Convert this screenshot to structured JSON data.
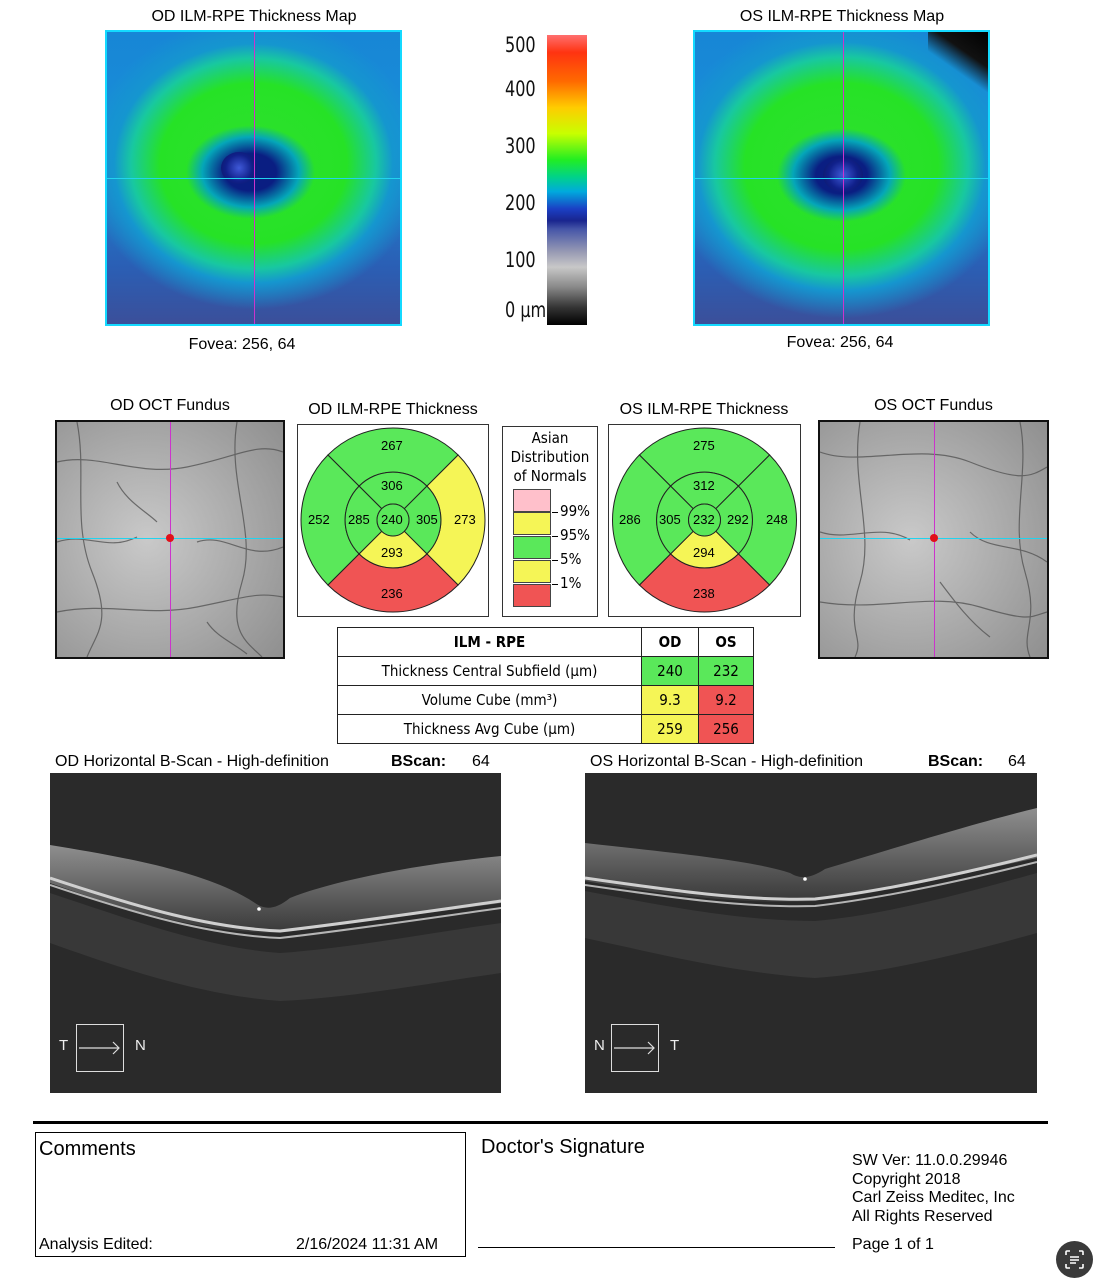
{
  "od_map": {
    "title": "OD ILM-RPE Thickness Map",
    "fovea": "Fovea: 256, 64"
  },
  "os_map": {
    "title": "OS ILM-RPE Thickness Map",
    "fovea": "Fovea: 256, 64"
  },
  "scale": {
    "labels": [
      "500",
      "400",
      "300",
      "200",
      "100",
      "0 µm"
    ]
  },
  "od_fundus": {
    "title": "OD OCT Fundus"
  },
  "os_fundus": {
    "title": "OS OCT Fundus"
  },
  "od_etdrs": {
    "title": "OD ILM-RPE Thickness",
    "superior_outer": "267",
    "superior_inner": "306",
    "temporal_outer": "252",
    "temporal_inner": "285",
    "center": "240",
    "nasal_inner": "305",
    "nasal_outer": "273",
    "inferior_inner": "293",
    "inferior_outer": "236"
  },
  "os_etdrs": {
    "title": "OS ILM-RPE Thickness",
    "superior_outer": "275",
    "superior_inner": "312",
    "nasal_outer": "286",
    "nasal_inner": "305",
    "center": "232",
    "temporal_inner": "292",
    "temporal_outer": "248",
    "inferior_inner": "294",
    "inferior_outer": "238"
  },
  "legend": {
    "title_1": "Asian",
    "title_2": "Distribution",
    "title_3": "of Normals",
    "ticks": [
      "99%",
      "95%",
      "5%",
      "1%"
    ]
  },
  "table": {
    "header": {
      "label": "ILM - RPE",
      "od": "OD",
      "os": "OS"
    },
    "rows": [
      {
        "label": "Thickness Central Subfield (µm)",
        "od": "240",
        "os": "232"
      },
      {
        "label": "Volume Cube (mm³)",
        "od": "9.3",
        "os": "9.2"
      },
      {
        "label": "Thickness Avg Cube (µm)",
        "od": "259",
        "os": "256"
      }
    ]
  },
  "od_bscan": {
    "title": "OD Horizontal B-Scan - High-definition",
    "bscan_label": "BScan:",
    "bscan_value": "64",
    "left": "T",
    "right": "N"
  },
  "os_bscan": {
    "title": "OS Horizontal B-Scan - High-definition",
    "bscan_label": "BScan:",
    "bscan_value": "64",
    "left": "N",
    "right": "T"
  },
  "footer": {
    "comments_label": "Comments",
    "analysis_edited_label": "Analysis Edited:",
    "analysis_edited_value": "2/16/2024 11:31 AM",
    "signature_label": "Doctor's Signature",
    "sw_ver": "SW Ver: 11.0.0.29946",
    "copyright": "Copyright 2018",
    "company": "Carl Zeiss Meditec, Inc",
    "rights": "All Rights Reserved",
    "page": "Page 1 of 1"
  },
  "colors": {
    "normal": "#5ae85a",
    "borderline": "#f5f556",
    "abnormal": "#f05454",
    "outside_99": "#ffc0cb"
  }
}
